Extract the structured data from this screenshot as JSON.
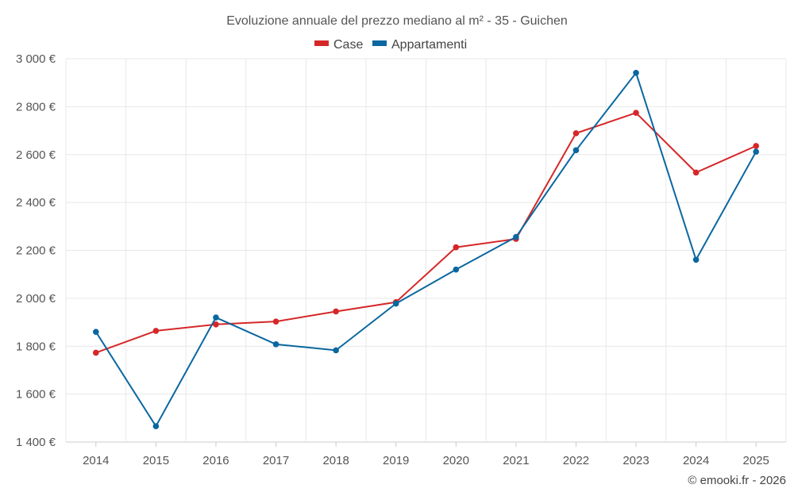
{
  "chart_data": {
    "type": "line",
    "title": "Evoluzione annuale del prezzo mediano al m² - 35 - Guichen",
    "categories": [
      "2014",
      "2015",
      "2016",
      "2017",
      "2018",
      "2019",
      "2020",
      "2021",
      "2022",
      "2023",
      "2024",
      "2025"
    ],
    "series": [
      {
        "name": "Case",
        "color": "#d62728",
        "values": [
          1773,
          1864,
          1891,
          1903,
          1945,
          1984,
          2213,
          2248,
          2689,
          2774,
          2525,
          2636
        ]
      },
      {
        "name": "Appartamenti",
        "color": "#0a67a0",
        "values": [
          1860,
          1466,
          1920,
          1808,
          1783,
          1978,
          2120,
          2256,
          2618,
          2941,
          2161,
          2612
        ]
      }
    ],
    "ylim": [
      1400,
      3000
    ],
    "yticks": [
      1400,
      1600,
      1800,
      2000,
      2200,
      2400,
      2600,
      2800,
      3000
    ],
    "ytick_labels": [
      "1 400 €",
      "1 600 €",
      "1 800 €",
      "2 000 €",
      "2 200 €",
      "2 400 €",
      "2 600 €",
      "2 800 €",
      "3 000 €"
    ],
    "xlabel": "",
    "ylabel": "",
    "legend": "top-center",
    "grid": true
  },
  "credit": "© emooki.fr - 2026"
}
